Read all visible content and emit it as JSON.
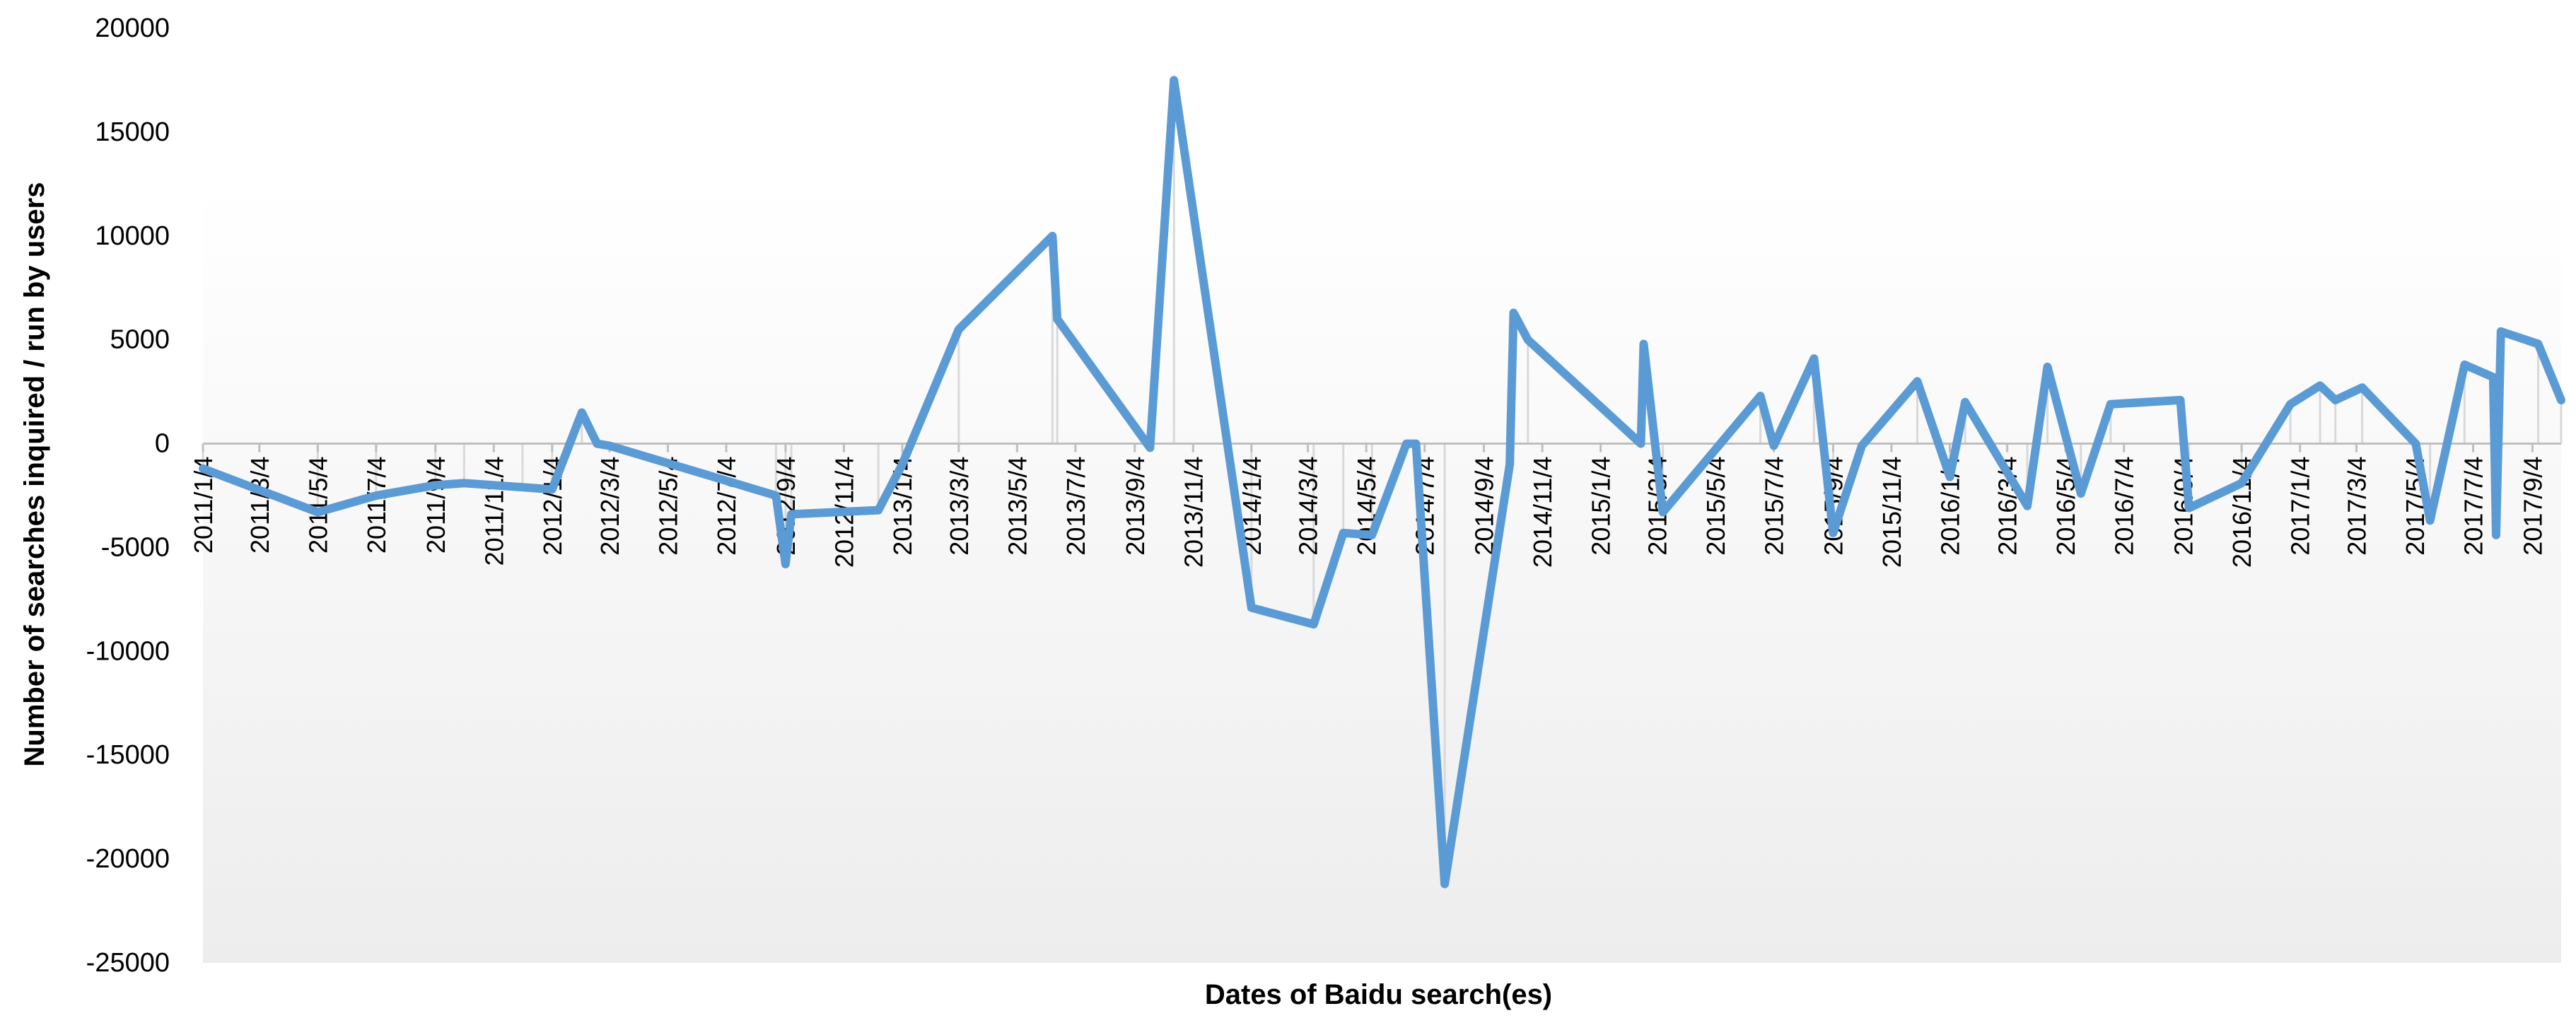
{
  "chart_data": {
    "type": "line",
    "title": "",
    "xlabel": "Dates of Baidu search(es)",
    "ylabel": "Number of searches inquired / run by users",
    "ylim": [
      -25000,
      20000
    ],
    "xlim": [
      "2011/1/4",
      "2017/10/4"
    ],
    "y_ticks": [
      20000,
      15000,
      10000,
      5000,
      0,
      -5000,
      -10000,
      -15000,
      -20000,
      -25000
    ],
    "y_tick_labels": [
      "20000",
      "15000",
      "10000",
      "5000",
      "0",
      "-5000",
      "-10000",
      "-15000",
      "-20000",
      "-25000"
    ],
    "x_tick_labels": [
      "2011/1/4",
      "2011/3/4",
      "2011/5/4",
      "2011/7/4",
      "2011/9/4",
      "2011/11/4",
      "2012/1/4",
      "2012/3/4",
      "2012/5/4",
      "2012/7/4",
      "2012/9/4",
      "2012/11/4",
      "2013/1/4",
      "2013/3/4",
      "2013/5/4",
      "2013/7/4",
      "2013/9/4",
      "2013/11/4",
      "2014/1/4",
      "2014/3/4",
      "2014/5/4",
      "2014/7/4",
      "2014/9/4",
      "2014/11/4",
      "2015/1/4",
      "2015/3/4",
      "2015/5/4",
      "2015/7/4",
      "2015/9/4",
      "2015/11/4",
      "2016/1/4",
      "2016/3/4",
      "2016/5/4",
      "2016/7/4",
      "2016/9/4",
      "2016/11/4",
      "2017/1/4",
      "2017/3/4",
      "2017/5/4",
      "2017/7/4",
      "2017/9/4"
    ],
    "grid": false,
    "line_color": "#5B9BD5",
    "drop_line_color": "#D9D9D9",
    "background_gradient": [
      "#FFFFFF",
      "#EDEDED"
    ],
    "series": [
      {
        "x": [
          "2011/1/4",
          "2011/5/4",
          "2011/7/4",
          "2011/9/4",
          "2011/10/4",
          "2011/12/4",
          "2012/1/4",
          "2012/2/4",
          "2012/2/20",
          "2012/3/4",
          "2012/8/25",
          "2012/9/4",
          "2012/9/10",
          "2012/12/10",
          "2013/1/4",
          "2013/3/4",
          "2013/6/10",
          "2013/6/15",
          "2013/9/20",
          "2013/10/15",
          "2014/1/4",
          "2014/3/10",
          "2014/4/10",
          "2014/5/10",
          "2014/6/15",
          "2014/6/25",
          "2014/7/25",
          "2014/10/1",
          "2014/10/5",
          "2014/10/20",
          "2015/2/15",
          "2015/2/18",
          "2015/3/10",
          "2015/6/20",
          "2015/7/4",
          "2015/8/15",
          "2015/9/4",
          "2015/10/4",
          "2015/12/1",
          "2016/1/4",
          "2016/1/20",
          "2016/3/25",
          "2016/4/15",
          "2016/5/20",
          "2016/6/20",
          "2016/9/1",
          "2016/9/10",
          "2016/11/4",
          "2016/12/25",
          "2017/1/25",
          "2017/2/10",
          "2017/3/10",
          "2017/5/5",
          "2017/5/20",
          "2017/6/25",
          "2017/7/25",
          "2017/7/28",
          "2017/8/2",
          "2017/9/10",
          "2017/10/4"
        ],
        "values": [
          -1200,
          -3300,
          -2500,
          -2000,
          -1900,
          -2100,
          -2200,
          1500,
          0,
          -100,
          -2500,
          -5800,
          -3400,
          -3200,
          -1000,
          5500,
          10000,
          6000,
          -200,
          17500,
          -7900,
          -8700,
          -4300,
          -4400,
          0,
          0,
          -21200,
          -1000,
          6300,
          5000,
          0,
          4800,
          -3300,
          2300,
          -100,
          4100,
          -4300,
          -100,
          3000,
          -1600,
          2000,
          -3000,
          3700,
          -2400,
          1900,
          2100,
          -3100,
          -1900,
          1900,
          2800,
          2100,
          2700,
          0,
          -3700,
          3800,
          3200,
          -4400,
          5400,
          4800,
          2100
        ]
      }
    ]
  }
}
